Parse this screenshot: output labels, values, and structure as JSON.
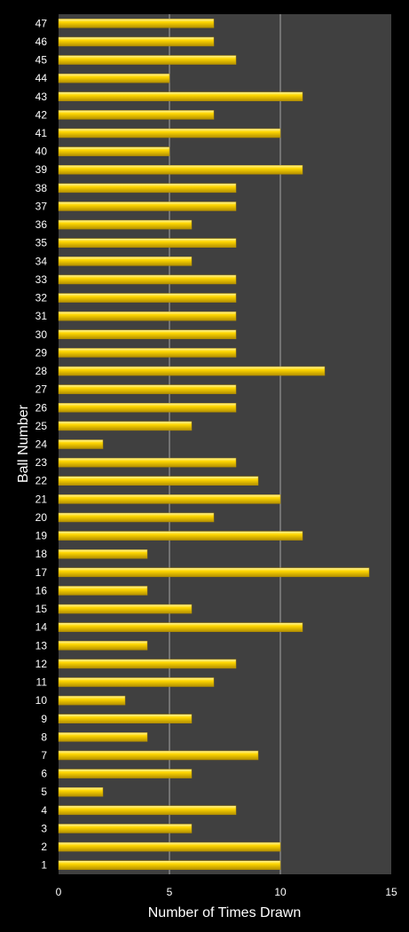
{
  "chart_data": {
    "type": "bar",
    "orientation": "horizontal",
    "xlabel": "Number of Times Drawn",
    "ylabel": "Ball Number",
    "xlim": [
      0,
      15
    ],
    "x_ticks": [
      0,
      5,
      10,
      15
    ],
    "grid": true,
    "colors": {
      "background": "#000000",
      "plot_area": "#404040",
      "bar": "#ffd700",
      "bar_highlight": "#fff6a8",
      "bar_shadow": "#b38f00",
      "gridline": "#a6a6a6",
      "text": "#ffffff"
    },
    "categories": [
      "1",
      "2",
      "3",
      "4",
      "5",
      "6",
      "7",
      "8",
      "9",
      "10",
      "11",
      "12",
      "13",
      "14",
      "15",
      "16",
      "17",
      "18",
      "19",
      "20",
      "21",
      "22",
      "23",
      "24",
      "25",
      "26",
      "27",
      "28",
      "29",
      "30",
      "31",
      "32",
      "33",
      "34",
      "35",
      "36",
      "37",
      "38",
      "39",
      "40",
      "41",
      "42",
      "43",
      "44",
      "45",
      "46",
      "47"
    ],
    "values": [
      10,
      10,
      6,
      8,
      2,
      6,
      9,
      4,
      6,
      3,
      7,
      8,
      4,
      11,
      6,
      4,
      14,
      4,
      11,
      7,
      10,
      9,
      8,
      2,
      6,
      8,
      8,
      12,
      8,
      8,
      8,
      8,
      8,
      6,
      8,
      6,
      8,
      8,
      11,
      5,
      10,
      7,
      11,
      5,
      8,
      7,
      7
    ]
  }
}
